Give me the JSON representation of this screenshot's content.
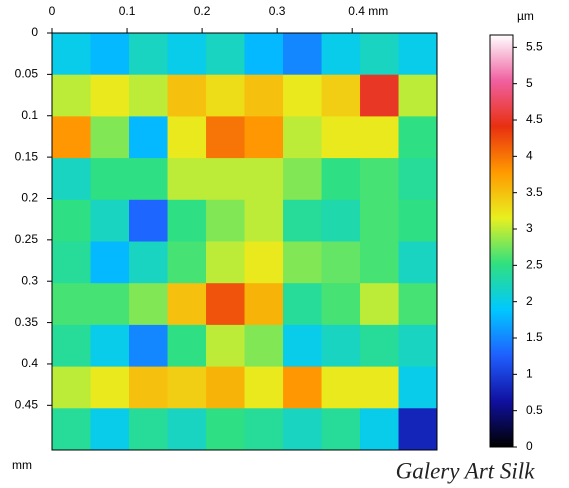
{
  "chart_data": {
    "type": "heatmap",
    "x_axis_label": "mm",
    "colorbar_label": "µm",
    "watermark": "Galery Art Silk",
    "xlim": [
      0,
      0.513
    ],
    "ylim": [
      0,
      0.504
    ],
    "y_reversed": true,
    "xticks": [
      0,
      0.1,
      0.2,
      0.3,
      {
        "value": 0.4,
        "label": "0.4 mm"
      }
    ],
    "yticks": [
      0,
      0.05,
      0.1,
      0.15,
      0.2,
      0.25,
      0.3,
      0.35,
      0.4,
      0.45
    ],
    "x": [
      0.0257,
      0.077,
      0.1283,
      0.1796,
      0.2309,
      0.2822,
      0.3335,
      0.3848,
      0.4361,
      0.4874
    ],
    "y": [
      0.0252,
      0.0756,
      0.126,
      0.1764,
      0.2268,
      0.2772,
      0.3276,
      0.378,
      0.4284,
      0.4788
    ],
    "z": [
      [
        2.0,
        1.8,
        2.2,
        2.0,
        2.2,
        1.8,
        1.5,
        2.0,
        2.2,
        2.0
      ],
      [
        3.0,
        3.2,
        3.0,
        3.5,
        3.3,
        3.5,
        3.2,
        3.4,
        4.5,
        3.0
      ],
      [
        3.8,
        2.8,
        1.8,
        3.2,
        4.0,
        3.8,
        3.0,
        3.2,
        3.2,
        2.5
      ],
      [
        2.2,
        2.5,
        2.5,
        3.0,
        3.0,
        3.0,
        2.8,
        2.5,
        2.6,
        2.4
      ],
      [
        2.5,
        2.2,
        1.3,
        2.5,
        2.8,
        3.0,
        2.4,
        2.3,
        2.6,
        2.5
      ],
      [
        2.4,
        1.8,
        2.2,
        2.6,
        3.0,
        3.2,
        2.8,
        2.7,
        2.6,
        2.2
      ],
      [
        2.6,
        2.6,
        2.8,
        3.5,
        4.2,
        3.6,
        2.4,
        2.6,
        3.0,
        2.6
      ],
      [
        2.4,
        2.0,
        1.5,
        2.5,
        3.0,
        2.8,
        2.0,
        2.2,
        2.4,
        2.2
      ],
      [
        3.0,
        3.2,
        3.5,
        3.4,
        3.6,
        3.2,
        3.8,
        3.2,
        3.2,
        2.0
      ],
      [
        2.4,
        2.0,
        2.4,
        2.2,
        2.5,
        2.4,
        2.2,
        2.4,
        2.0,
        0.8
      ]
    ],
    "clim": [
      0,
      5.67
    ],
    "cticks": [
      0,
      0.5,
      1,
      1.5,
      2,
      2.5,
      3,
      3.5,
      4,
      4.5,
      5,
      5.5
    ],
    "colorscale": [
      "#000000",
      "#1010a0",
      "#1f5fff",
      "#00c8ff",
      "#30e080",
      "#e8f020",
      "#ff9a00",
      "#e83010",
      "#f060a0",
      "#ffffff"
    ]
  }
}
